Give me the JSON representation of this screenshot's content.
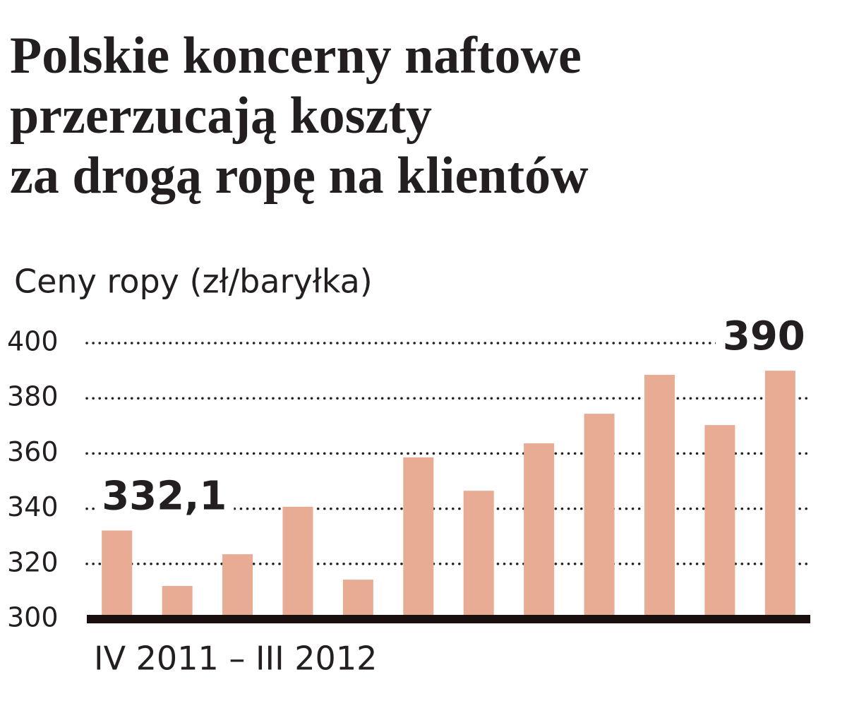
{
  "chart_data": {
    "type": "bar",
    "title": [
      "Polskie koncerny naftowe",
      "przerzucają koszty",
      "za drogą ropę na klientów"
    ],
    "subtitle": "Ceny ropy (zł/baryłka)",
    "x_label": "IV 2011 – III 2012",
    "categories": [
      null,
      null,
      null,
      null,
      null,
      null,
      null,
      null,
      null,
      null,
      null,
      null
    ],
    "values": [
      332.1,
      312,
      323.5,
      340.7,
      314.3,
      358.6,
      346.5,
      363.7,
      374.4,
      388.5,
      370.3,
      390
    ],
    "value_labels": [
      "332,1",
      null,
      null,
      null,
      null,
      null,
      null,
      null,
      null,
      null,
      null,
      "390"
    ],
    "color": "#e8ab94",
    "ylim": [
      300,
      400
    ],
    "yticks": [
      300,
      320,
      340,
      360,
      380,
      400
    ],
    "grid": true
  }
}
